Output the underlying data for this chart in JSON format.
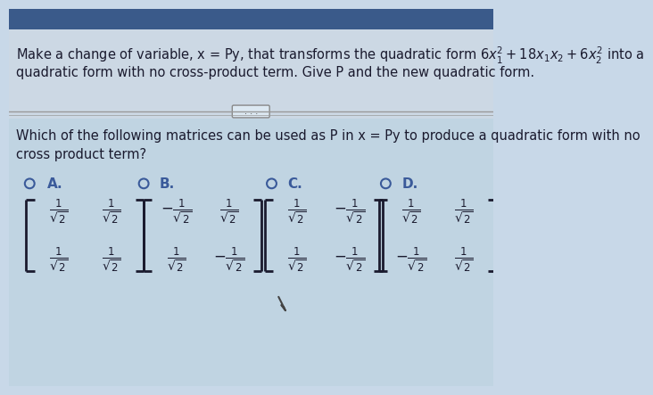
{
  "bg_color": "#c8d8e8",
  "top_bar_color": "#3a5a8a",
  "text_color": "#1a1a2e",
  "radio_color": "#3a5a9a",
  "separator_color": "#999999",
  "title_line1": "Make a change of variable, x = Py, that transforms the quadratic form $6x_1^2 + 18x_1x_2 + 6x_2^2$ into a",
  "title_line2": "quadratic form with no cross-product term. Give P and the new quadratic form.",
  "question_line1": "Which of the following matrices can be used as P in x = Py to produce a quadratic form with no",
  "question_line2": "cross product term?",
  "options": [
    "A.",
    "B.",
    "C.",
    "D."
  ],
  "matrix_A": [
    [
      "\\frac{1}{\\sqrt{2}}",
      "\\frac{1}{\\sqrt{2}}"
    ],
    [
      "\\frac{1}{\\sqrt{2}}",
      "\\frac{1}{\\sqrt{2}}"
    ]
  ],
  "matrix_B": [
    [
      "-\\frac{1}{\\sqrt{2}}",
      "\\frac{1}{\\sqrt{2}}"
    ],
    [
      "\\frac{1}{\\sqrt{2}}",
      "-\\frac{1}{\\sqrt{2}}"
    ]
  ],
  "matrix_C": [
    [
      "\\frac{1}{\\sqrt{2}}",
      "-\\frac{1}{\\sqrt{2}}"
    ],
    [
      "\\frac{1}{\\sqrt{2}}",
      "-\\frac{1}{\\sqrt{2}}"
    ]
  ],
  "matrix_D": [
    [
      "\\frac{1}{\\sqrt{2}}",
      "\\frac{1}{\\sqrt{2}}"
    ],
    [
      "-\\frac{1}{\\sqrt{2}}",
      "\\frac{1}{\\sqrt{2}}"
    ]
  ],
  "font_size_title": 10.5,
  "font_size_question": 10.5,
  "font_size_option": 11,
  "font_size_matrix": 12
}
